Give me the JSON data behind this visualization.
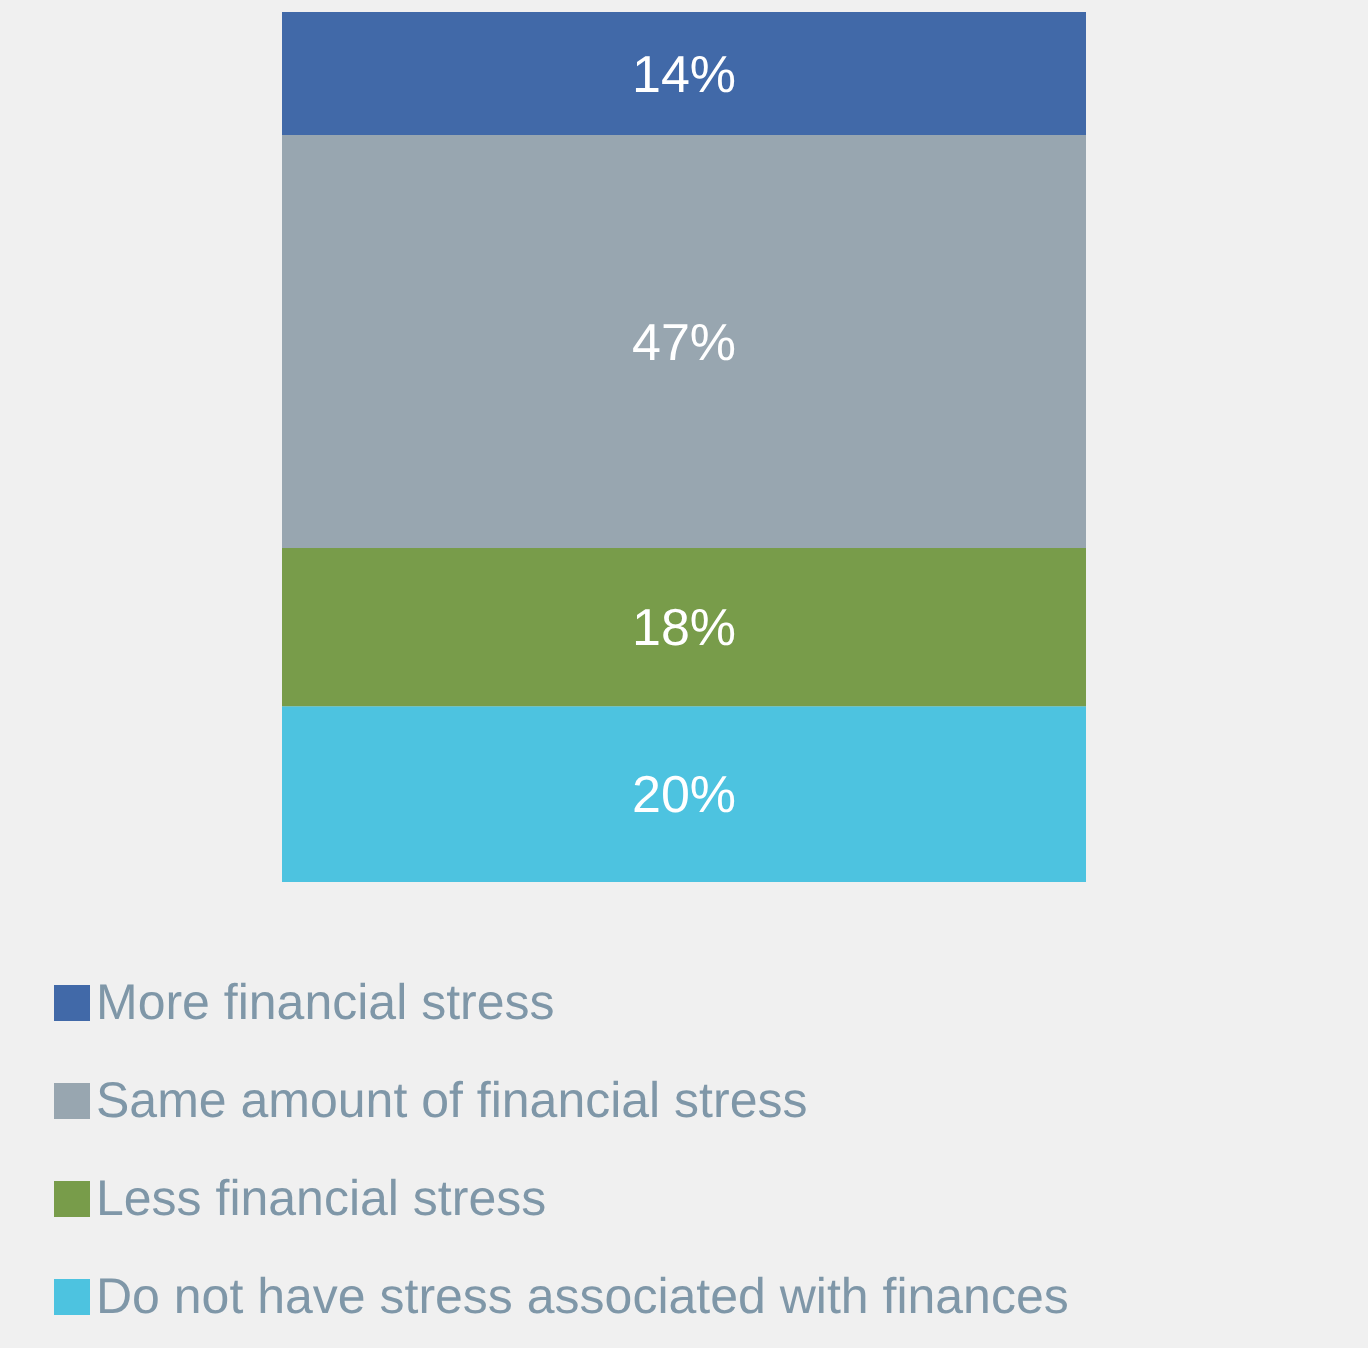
{
  "chart_data": {
    "type": "bar",
    "stacked": true,
    "categories": [
      null
    ],
    "legend": "bottom left",
    "series": [
      {
        "name": "Do not have stress associated with finances",
        "color": "#4dc3e0",
        "values": [
          20
        ],
        "value_labels": [
          "20%"
        ]
      },
      {
        "name": "Less financial stress",
        "color": "#789c4a",
        "values": [
          18
        ],
        "value_labels": [
          "18%"
        ]
      },
      {
        "name": "Same amount of financial stress",
        "color": "#98a6b0",
        "values": [
          47
        ],
        "value_labels": [
          "47%"
        ]
      },
      {
        "name": "More financial stress",
        "color": "#4169a8",
        "values": [
          14
        ],
        "value_labels": [
          "14%"
        ]
      }
    ]
  }
}
